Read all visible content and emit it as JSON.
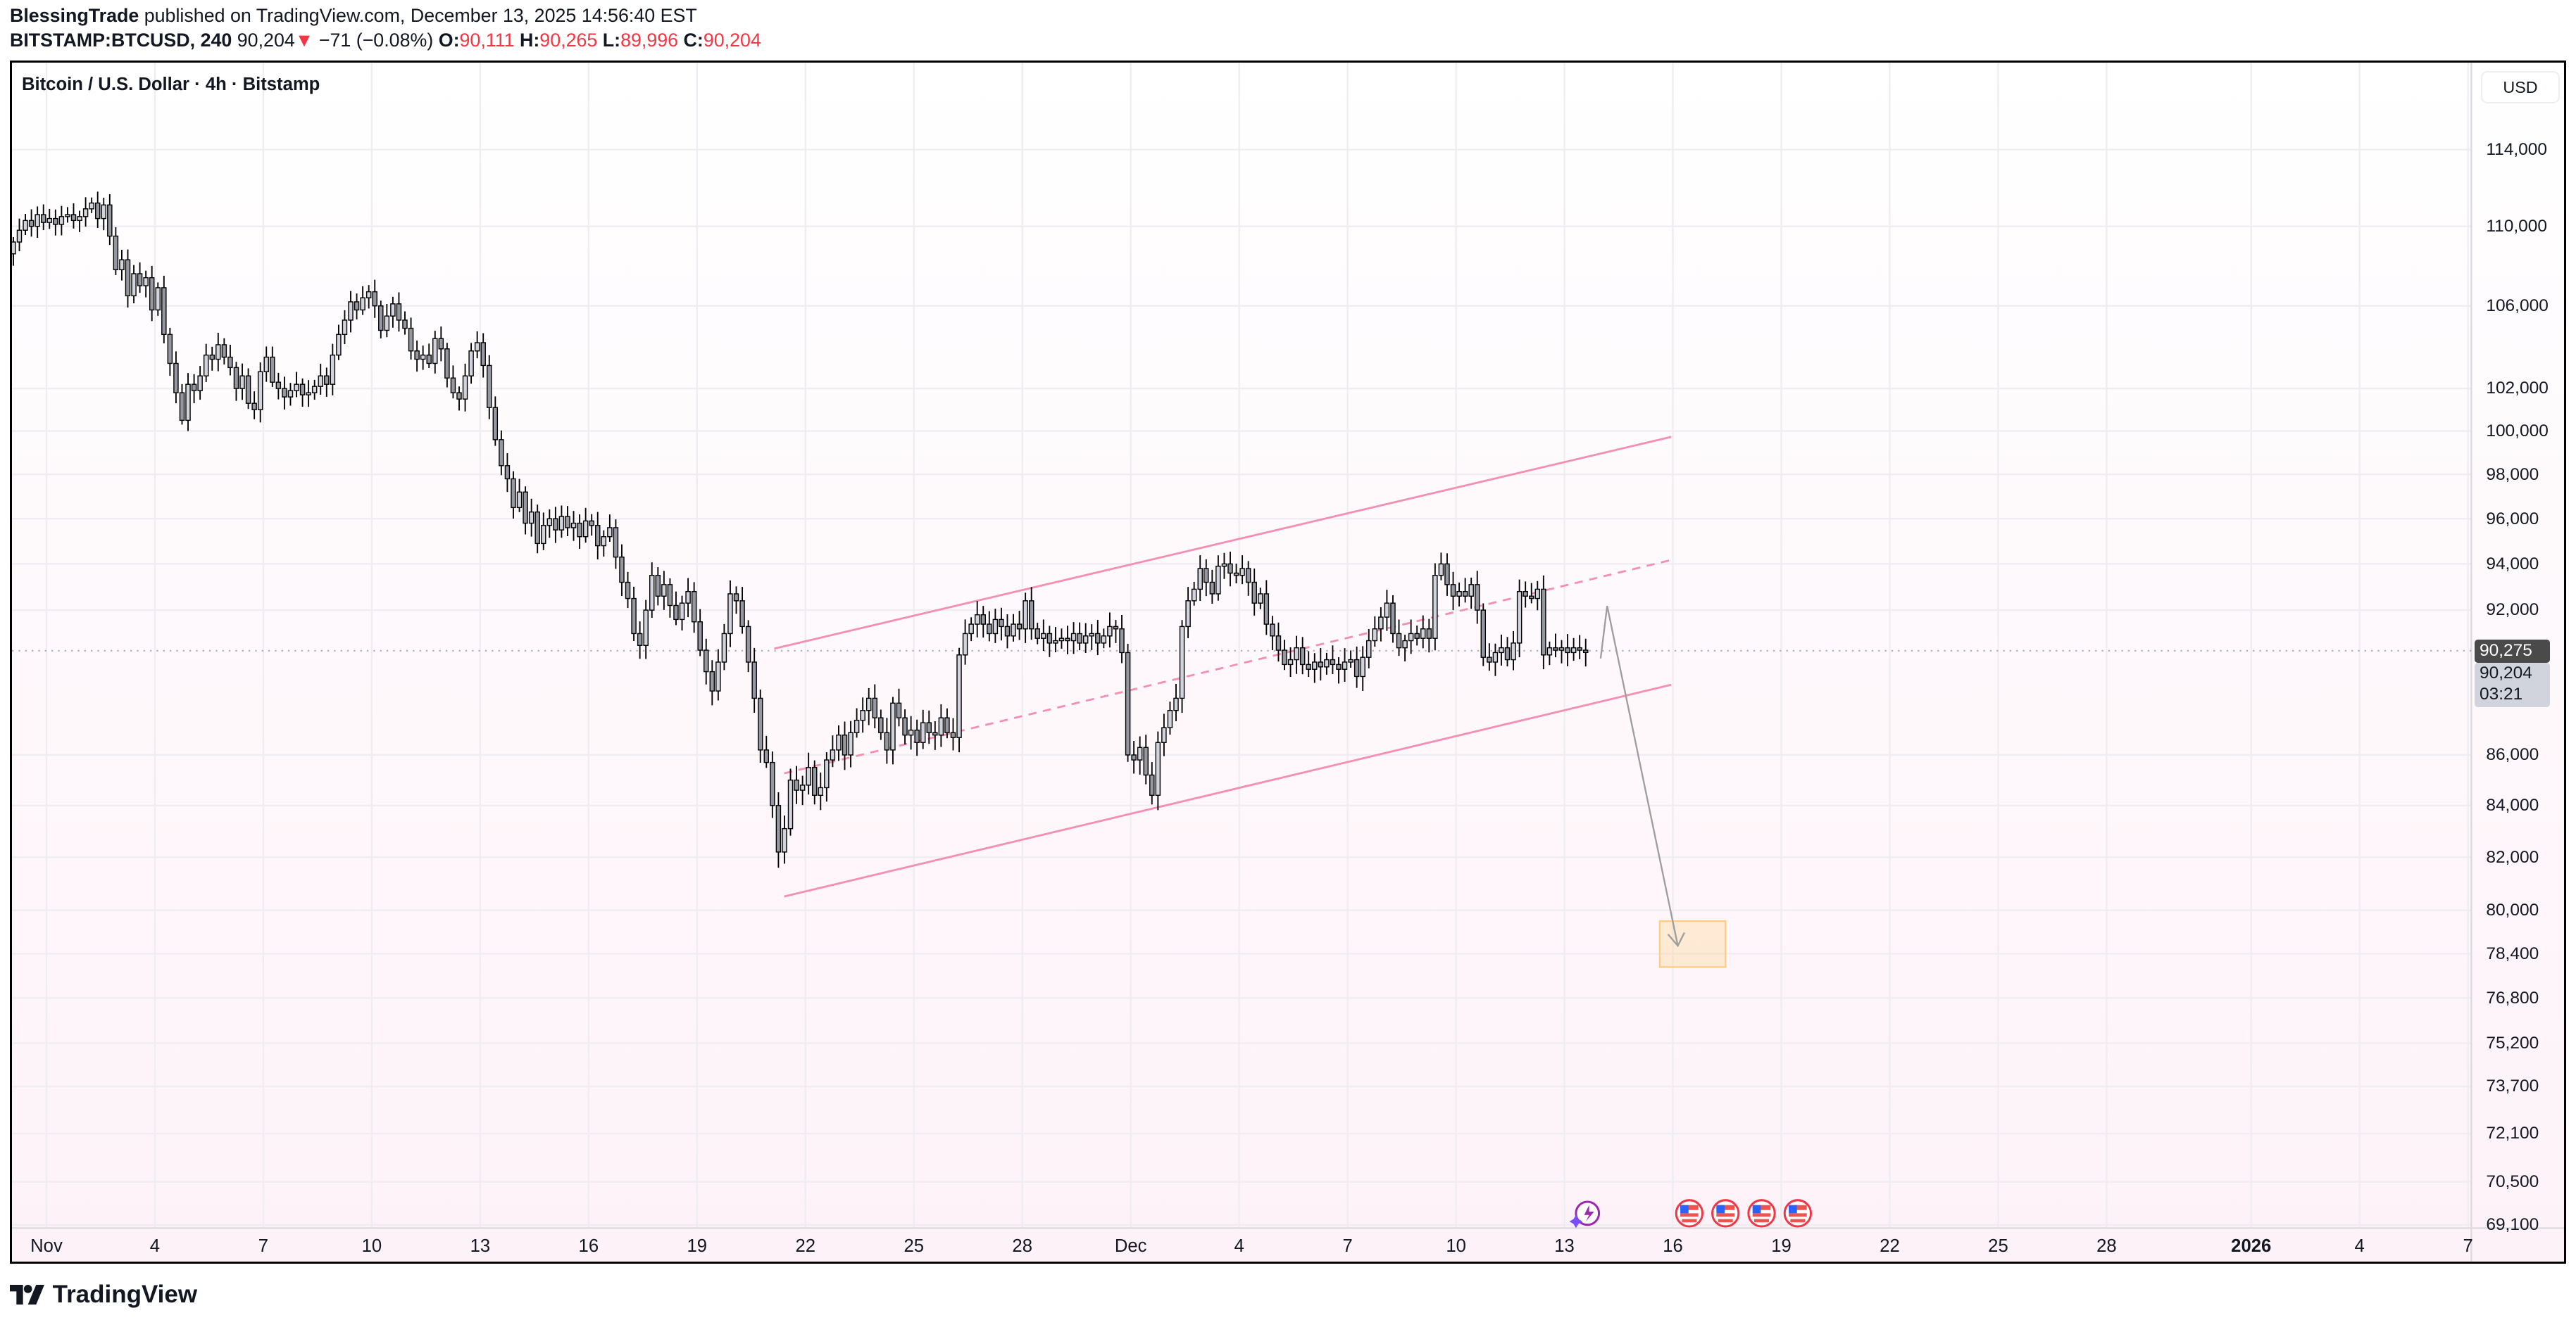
{
  "header": {
    "author": "BlessingTrade",
    "published": "published on TradingView.com, December 13, 2025 14:56:40 EST",
    "symbol": "BITSTAMP:BTCUSD, 240",
    "last": "90,204",
    "change": "−71 (−0.08%)",
    "o_label": "O:",
    "o": "90,111",
    "h_label": "H:",
    "h": "90,265",
    "l_label": "L:",
    "l": "89,996",
    "c_label": "C:",
    "c": "90,204"
  },
  "chart_title": "Bitcoin / U.S. Dollar · 4h · Bitstamp",
  "currency": "USD",
  "badges": {
    "line_price": "90,275",
    "last_price": "90,204",
    "countdown": "03:21"
  },
  "footer": {
    "brand": "TradingView"
  },
  "colors": {
    "bull_body": "#d1d4dc",
    "bear_body": "#9598a1",
    "wick": "#000000",
    "channel": "#f48fb1",
    "target_box": "#ffcc80",
    "down": "#f23645"
  },
  "events": [
    "lightning-ai-icon",
    "us-flag-icon",
    "us-flag-icon",
    "us-flag-icon",
    "us-flag-icon"
  ],
  "chart_data": {
    "type": "candlestick",
    "interval": "4h",
    "scale": "log",
    "grid": true,
    "ylim": [
      69100,
      116000
    ],
    "y_tick_labels": [
      "114,000",
      "110,000",
      "106,000",
      "102,000",
      "100,000",
      "98,000",
      "96,000",
      "94,000",
      "92,000",
      "86,000",
      "84,000",
      "82,000",
      "80,000",
      "78,400",
      "76,800",
      "75,200",
      "73,700",
      "72,100",
      "70,500",
      "69,100"
    ],
    "x_tick_labels": [
      "Nov",
      "4",
      "7",
      "10",
      "13",
      "16",
      "19",
      "22",
      "25",
      "28",
      "Dec",
      "4",
      "7",
      "10",
      "13",
      "16",
      "19",
      "22",
      "25",
      "28",
      "2026",
      "4",
      "7"
    ],
    "close": [
      109200,
      109800,
      110300,
      110000,
      110600,
      110200,
      110400,
      110100,
      110500,
      110600,
      110300,
      110500,
      110900,
      111200,
      110400,
      111100,
      109500,
      107800,
      108300,
      106500,
      107600,
      107000,
      107400,
      105800,
      106900,
      104600,
      103200,
      101800,
      100500,
      102200,
      101900,
      102600,
      103600,
      103400,
      104100,
      103500,
      103000,
      102000,
      102600,
      101300,
      101000,
      102800,
      103500,
      102300,
      102000,
      101600,
      101900,
      102200,
      101700,
      101800,
      102100,
      102600,
      102200,
      103600,
      104600,
      105300,
      106200,
      105800,
      106400,
      106700,
      106000,
      104800,
      105500,
      106100,
      105300,
      104900,
      103800,
      103400,
      103600,
      103200,
      104400,
      103900,
      102500,
      101800,
      101500,
      102600,
      103800,
      104200,
      103100,
      101100,
      99600,
      98400,
      97800,
      96500,
      97200,
      95800,
      96300,
      94900,
      95700,
      96000,
      95500,
      96100,
      95600,
      95800,
      95200,
      95900,
      95700,
      94800,
      95200,
      95600,
      94300,
      93200,
      92500,
      91000,
      90500,
      92000,
      93500,
      92600,
      93100,
      92200,
      91600,
      92300,
      92800,
      91500,
      90300,
      89400,
      88600,
      89800,
      91000,
      92700,
      92400,
      91300,
      89800,
      88300,
      86200,
      85700,
      84000,
      82200,
      83100,
      85000,
      84600,
      84800,
      85500,
      84400,
      84700,
      85800,
      86200,
      86800,
      86000,
      86900,
      87400,
      87800,
      88300,
      87500,
      86900,
      86200,
      88100,
      87500,
      86800,
      87000,
      86500,
      87300,
      86900,
      86800,
      87500,
      86900,
      86700,
      90100,
      91000,
      91400,
      91800,
      91400,
      91000,
      91600,
      91300,
      90900,
      91400,
      91200,
      92400,
      91200,
      90800,
      91000,
      90600,
      90700,
      90800,
      90700,
      91000,
      90600,
      90900,
      91000,
      90600,
      90900,
      91300,
      91200,
      90200,
      86000,
      85800,
      86300,
      85200,
      84400,
      86500,
      87100,
      87800,
      88300,
      91300,
      92400,
      92900,
      93800,
      93200,
      92700,
      93900,
      94000,
      93600,
      93500,
      93800,
      93200,
      92300,
      92700,
      91400,
      90900,
      90300,
      89700,
      89900,
      90400,
      89700,
      89500,
      89800,
      89600,
      89900,
      89700,
      89500,
      89800,
      89900,
      89200,
      90000,
      90700,
      91200,
      91700,
      92300,
      91000,
      90400,
      90700,
      91000,
      90800,
      91200,
      90800,
      93500,
      94000,
      93100,
      92600,
      92800,
      92600,
      93100,
      92000,
      90000,
      89800,
      90200,
      90400,
      89900,
      90600,
      92800,
      92600,
      92500,
      92900,
      90100,
      90400,
      90300,
      90400,
      90200,
      90400,
      90300,
      90204
    ]
  }
}
